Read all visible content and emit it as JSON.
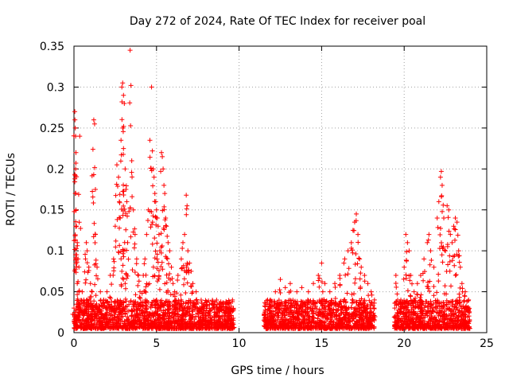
{
  "chart_data": {
    "type": "scatter",
    "title": "Day 272 of 2024, Rate Of TEC Index for receiver poal",
    "xlabel": "GPS time / hours",
    "ylabel": "ROTI / TECUs",
    "xlim": [
      0,
      25
    ],
    "ylim": [
      0,
      0.35
    ],
    "x_ticks": [
      0,
      5,
      10,
      15,
      20,
      25
    ],
    "y_ticks": [
      0,
      0.05,
      0.1,
      0.15,
      0.2,
      0.25,
      0.3,
      0.35
    ],
    "x_tick_labels": [
      "0",
      "5",
      "10",
      "15",
      "20",
      "25"
    ],
    "y_tick_labels": [
      "0",
      "0.05",
      "0.1",
      "0.15",
      "0.2",
      "0.25",
      "0.3",
      "0.35"
    ],
    "grid": true,
    "marker": "+",
    "color": "#ff0000",
    "series": [
      {
        "points": [
          [
            0.0,
            0.03
          ],
          [
            0.05,
            0.27
          ],
          [
            0.06,
            0.26
          ],
          [
            0.08,
            0.25
          ],
          [
            0.1,
            0.24
          ],
          [
            0.12,
            0.22
          ],
          [
            0.1,
            0.2
          ],
          [
            0.08,
            0.17
          ],
          [
            0.12,
            0.15
          ],
          [
            0.15,
            0.13
          ],
          [
            0.2,
            0.11
          ],
          [
            0.25,
            0.09
          ],
          [
            0.3,
            0.08
          ],
          [
            0.2,
            0.06
          ],
          [
            0.3,
            0.05
          ],
          [
            0.35,
            0.24
          ],
          [
            0.5,
            0.05
          ],
          [
            0.6,
            0.04
          ],
          [
            0.7,
            0.09
          ],
          [
            0.75,
            0.11
          ],
          [
            0.8,
            0.1
          ],
          [
            0.9,
            0.08
          ],
          [
            1.0,
            0.06
          ],
          [
            1.1,
            0.05
          ],
          [
            1.2,
            0.26
          ],
          [
            1.25,
            0.255
          ],
          [
            1.15,
            0.224
          ],
          [
            1.3,
            0.175
          ],
          [
            1.3,
            0.12
          ],
          [
            1.4,
            0.08
          ],
          [
            1.6,
            0.05
          ],
          [
            1.8,
            0.04
          ],
          [
            2.0,
            0.05
          ],
          [
            2.2,
            0.07
          ],
          [
            2.4,
            0.09
          ],
          [
            2.5,
            0.13
          ],
          [
            2.6,
            0.205
          ],
          [
            2.7,
            0.19
          ],
          [
            2.75,
            0.16
          ],
          [
            2.8,
            0.14
          ],
          [
            2.85,
            0.235
          ],
          [
            2.9,
            0.3
          ],
          [
            2.95,
            0.305
          ],
          [
            3.0,
            0.29
          ],
          [
            3.05,
            0.28
          ],
          [
            2.95,
            0.25
          ],
          [
            3.0,
            0.225
          ],
          [
            3.1,
            0.2
          ],
          [
            3.15,
            0.175
          ],
          [
            3.2,
            0.16
          ],
          [
            3.25,
            0.11
          ],
          [
            3.0,
            0.1
          ],
          [
            2.9,
            0.075
          ],
          [
            3.1,
            0.06
          ],
          [
            3.4,
            0.345
          ],
          [
            3.45,
            0.302
          ],
          [
            3.5,
            0.21
          ],
          [
            3.6,
            0.15
          ],
          [
            3.7,
            0.12
          ],
          [
            3.8,
            0.09
          ],
          [
            3.9,
            0.07
          ],
          [
            4.0,
            0.05
          ],
          [
            4.2,
            0.07
          ],
          [
            4.3,
            0.09
          ],
          [
            4.4,
            0.12
          ],
          [
            4.5,
            0.15
          ],
          [
            4.6,
            0.235
          ],
          [
            4.7,
            0.3
          ],
          [
            4.75,
            0.222
          ],
          [
            4.8,
            0.2
          ],
          [
            4.85,
            0.19
          ],
          [
            4.9,
            0.17
          ],
          [
            4.95,
            0.16
          ],
          [
            5.0,
            0.15
          ],
          [
            5.05,
            0.14
          ],
          [
            5.1,
            0.13
          ],
          [
            5.15,
            0.12
          ],
          [
            5.2,
            0.1
          ],
          [
            5.3,
            0.22
          ],
          [
            5.35,
            0.215
          ],
          [
            5.4,
            0.2
          ],
          [
            5.45,
            0.18
          ],
          [
            5.5,
            0.17
          ],
          [
            5.55,
            0.14
          ],
          [
            5.6,
            0.13
          ],
          [
            5.7,
            0.11
          ],
          [
            5.8,
            0.1
          ],
          [
            5.9,
            0.08
          ],
          [
            6.0,
            0.06
          ],
          [
            6.1,
            0.05
          ],
          [
            6.3,
            0.07
          ],
          [
            6.5,
            0.09
          ],
          [
            6.6,
            0.11
          ],
          [
            6.7,
            0.12
          ],
          [
            6.8,
            0.168
          ],
          [
            6.85,
            0.155
          ],
          [
            6.9,
            0.1
          ],
          [
            7.0,
            0.085
          ],
          [
            7.1,
            0.075
          ],
          [
            7.2,
            0.06
          ],
          [
            7.4,
            0.05
          ],
          [
            7.6,
            0.03
          ],
          [
            7.9,
            0.03
          ],
          [
            8.2,
            0.03
          ],
          [
            8.5,
            0.025
          ],
          [
            8.8,
            0.03
          ],
          [
            9.1,
            0.02
          ],
          [
            9.4,
            0.035
          ],
          [
            9.6,
            0.04
          ],
          [
            11.6,
            0.035
          ],
          [
            11.9,
            0.04
          ],
          [
            12.2,
            0.05
          ],
          [
            12.5,
            0.065
          ],
          [
            12.8,
            0.055
          ],
          [
            13.1,
            0.06
          ],
          [
            13.5,
            0.05
          ],
          [
            13.8,
            0.055
          ],
          [
            14.2,
            0.05
          ],
          [
            14.5,
            0.06
          ],
          [
            14.8,
            0.07
          ],
          [
            15.0,
            0.085
          ],
          [
            15.2,
            0.06
          ],
          [
            15.5,
            0.05
          ],
          [
            15.8,
            0.06
          ],
          [
            16.1,
            0.07
          ],
          [
            16.4,
            0.09
          ],
          [
            16.6,
            0.1
          ],
          [
            16.8,
            0.11
          ],
          [
            16.9,
            0.125
          ],
          [
            17.0,
            0.135
          ],
          [
            17.1,
            0.145
          ],
          [
            17.2,
            0.12
          ],
          [
            17.3,
            0.09
          ],
          [
            17.4,
            0.08
          ],
          [
            17.6,
            0.07
          ],
          [
            17.8,
            0.06
          ],
          [
            18.0,
            0.05
          ],
          [
            18.2,
            0.04
          ],
          [
            19.5,
            0.07
          ],
          [
            19.8,
            0.04
          ],
          [
            20.0,
            0.08
          ],
          [
            20.1,
            0.12
          ],
          [
            20.2,
            0.11
          ],
          [
            20.3,
            0.1
          ],
          [
            20.4,
            0.07
          ],
          [
            20.6,
            0.05
          ],
          [
            20.8,
            0.06
          ],
          [
            21.0,
            0.07
          ],
          [
            21.2,
            0.09
          ],
          [
            21.4,
            0.11
          ],
          [
            21.5,
            0.12
          ],
          [
            21.6,
            0.1
          ],
          [
            21.8,
            0.08
          ],
          [
            22.0,
            0.14
          ],
          [
            22.1,
            0.16
          ],
          [
            22.2,
            0.19
          ],
          [
            22.25,
            0.197
          ],
          [
            22.3,
            0.18
          ],
          [
            22.4,
            0.14
          ],
          [
            22.5,
            0.1
          ],
          [
            22.6,
            0.155
          ],
          [
            22.7,
            0.15
          ],
          [
            22.8,
            0.12
          ],
          [
            22.9,
            0.11
          ],
          [
            23.0,
            0.13
          ],
          [
            23.1,
            0.14
          ],
          [
            23.2,
            0.135
          ],
          [
            23.3,
            0.1
          ],
          [
            23.4,
            0.08
          ],
          [
            23.5,
            0.06
          ],
          [
            23.7,
            0.05
          ],
          [
            23.9,
            0.04
          ]
        ],
        "base_noise": [
          [
            0.0,
            9.7,
            0.005,
            0.04
          ],
          [
            11.5,
            18.2,
            0.005,
            0.04
          ],
          [
            19.4,
            24.0,
            0.005,
            0.04
          ]
        ]
      }
    ]
  }
}
